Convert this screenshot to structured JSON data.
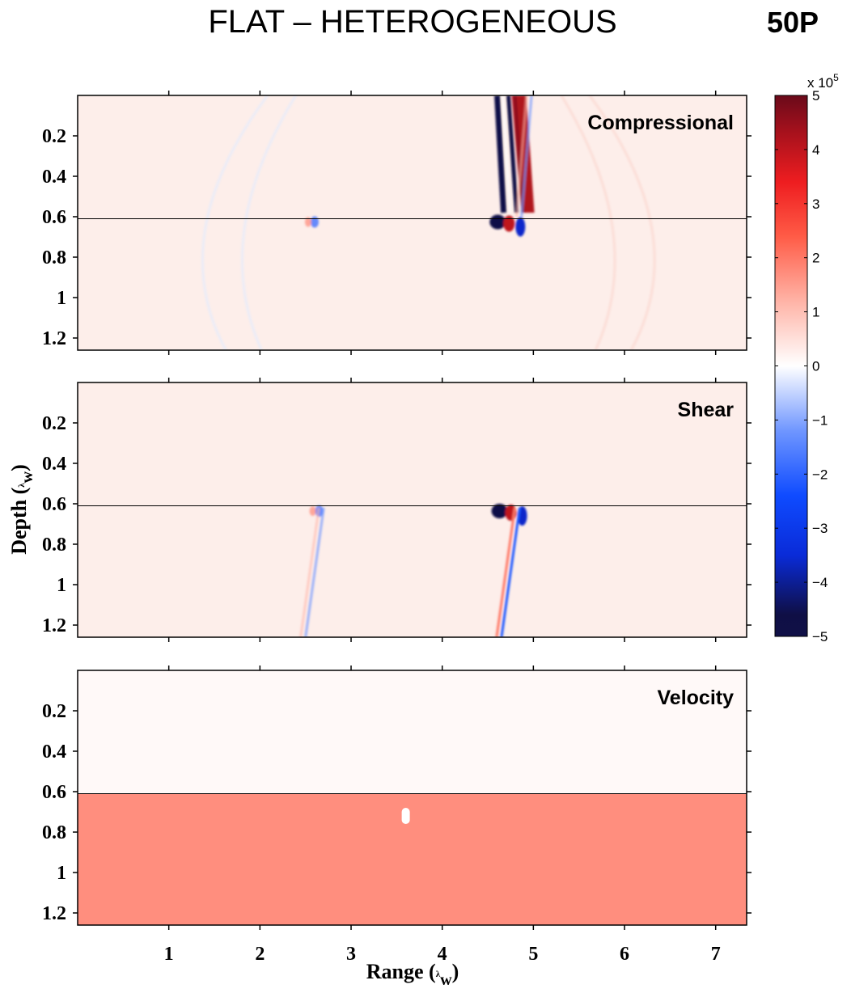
{
  "header": {
    "title": "FLAT – HETEROGENEOUS",
    "tag": "50P"
  },
  "chart_data": {
    "type": "heatmap",
    "xlabel": "Range (",
    "xlabel_sub": "w",
    "xlabel_close": ")",
    "ylabel": "Depth (",
    "ylabel_sub": "w",
    "ylabel_close": ")",
    "lambda_glyph": "λ",
    "xlim": [
      0,
      7.34
    ],
    "ylim": [
      0,
      1.26
    ],
    "x_ticks": [
      1,
      2,
      3,
      4,
      5,
      6,
      7
    ],
    "x_tick_labels": [
      "1",
      "2",
      "3",
      "4",
      "5",
      "6",
      "7"
    ],
    "y_ticks": [
      0.2,
      0.4,
      0.6,
      0.8,
      1.0,
      1.2
    ],
    "y_tick_labels": [
      "0.2",
      "0.4",
      "0.6",
      "0.8",
      "1",
      "1.2"
    ],
    "interface_depth": 0.61,
    "panels": [
      {
        "label": "Compressional",
        "background": "#fdeeea",
        "features": [
          {
            "kind": "wavefront",
            "x_top": 4.62,
            "x_bottom": 4.78,
            "y_top": 0.0,
            "y_bottom": 0.58,
            "sign": "pos-neg-band"
          },
          {
            "kind": "wavefront",
            "x_top": 4.98,
            "x_bottom": 4.87,
            "y_top": 0.0,
            "y_bottom": 0.6,
            "sign": "faint"
          },
          {
            "kind": "interface_scatter",
            "x": 4.68,
            "y": 0.61,
            "sign": "dipole"
          },
          {
            "kind": "interface_scatter",
            "x": 2.6,
            "y": 0.61,
            "sign": "faint"
          },
          {
            "kind": "faint_arc",
            "x_center": 3.85,
            "half_width": 2.85
          },
          {
            "kind": "faint_arc",
            "x_center": 3.85,
            "half_width": 2.35
          }
        ]
      },
      {
        "label": "Shear",
        "background": "#fdeeea",
        "features": [
          {
            "kind": "interface_scatter",
            "x": 4.7,
            "y": 0.62,
            "sign": "strong"
          },
          {
            "kind": "interface_scatter",
            "x": 2.65,
            "y": 0.62,
            "sign": "weak"
          },
          {
            "kind": "wavefront",
            "x_top": 4.85,
            "x_bottom": 4.65,
            "y_top": 0.62,
            "y_bottom": 1.26,
            "sign": "thin"
          },
          {
            "kind": "wavefront",
            "x_top": 2.7,
            "x_bottom": 2.5,
            "y_top": 0.62,
            "y_bottom": 1.26,
            "sign": "faint"
          }
        ]
      },
      {
        "label": "Velocity",
        "upper_value": 0.1,
        "lower_value": 1.7,
        "inclusion": {
          "x": 3.6,
          "y_top": 0.68,
          "y_bottom": 0.76
        }
      }
    ],
    "colorbar": {
      "range": [
        -5,
        5
      ],
      "ticks": [
        -5,
        -4,
        -3,
        -2,
        -1,
        0,
        1,
        2,
        3,
        4,
        5
      ],
      "tick_labels": [
        "−5",
        "−4",
        "−3",
        "−2",
        "−1",
        "0",
        "1",
        "2",
        "3",
        "4",
        "5"
      ],
      "scale_prefix": "x 10",
      "scale_exponent": "5",
      "stops": [
        {
          "v": -5,
          "color": "#101047"
        },
        {
          "v": -4.6,
          "color": "#0f0f45"
        },
        {
          "v": -3.5,
          "color": "#0a2bd8"
        },
        {
          "v": -2.4,
          "color": "#0f4bff"
        },
        {
          "v": -1.2,
          "color": "#6f96ff"
        },
        {
          "v": 0,
          "color": "#ffffff"
        },
        {
          "v": 1.2,
          "color": "#ffb3a6"
        },
        {
          "v": 2.4,
          "color": "#ff5b46"
        },
        {
          "v": 3.4,
          "color": "#ee1d20"
        },
        {
          "v": 4.4,
          "color": "#a0101c"
        },
        {
          "v": 5,
          "color": "#6a0a1a"
        }
      ]
    }
  }
}
